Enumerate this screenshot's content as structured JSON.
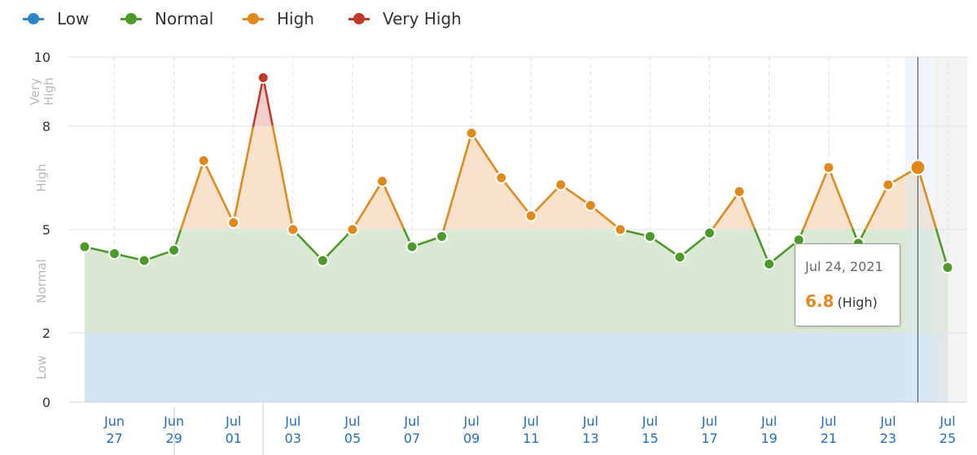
{
  "legend": [
    {
      "label": "Low",
      "color": "#2e86c8"
    },
    {
      "label": "Normal",
      "color": "#4c9a2a"
    },
    {
      "label": "High",
      "color": "#e08a1e"
    },
    {
      "label": "Very High",
      "color": "#c0392b"
    }
  ],
  "tooltip": {
    "date": "Jul 24, 2021",
    "value": "6.8",
    "level": "(High)"
  },
  "chart_data": {
    "type": "line",
    "ylim": [
      0,
      10
    ],
    "y_ticks": [
      "0",
      "2",
      "5",
      "8",
      "10"
    ],
    "bands": [
      {
        "label": "Low",
        "from": 0,
        "to": 2,
        "color": "#2e86c8"
      },
      {
        "label": "Normal",
        "from": 2,
        "to": 5,
        "color": "#4c9a2a"
      },
      {
        "label": "High",
        "from": 5,
        "to": 8,
        "color": "#e08a1e"
      },
      {
        "label": "Very High",
        "from": 8,
        "to": 10,
        "color": "#c0392b"
      }
    ],
    "x_ticks": [
      {
        "month": "Jun",
        "day": "27"
      },
      {
        "month": "Jun",
        "day": "29"
      },
      {
        "month": "Jul",
        "day": "01"
      },
      {
        "month": "Jul",
        "day": "03"
      },
      {
        "month": "Jul",
        "day": "05"
      },
      {
        "month": "Jul",
        "day": "07"
      },
      {
        "month": "Jul",
        "day": "09"
      },
      {
        "month": "Jul",
        "day": "11"
      },
      {
        "month": "Jul",
        "day": "13"
      },
      {
        "month": "Jul",
        "day": "15"
      },
      {
        "month": "Jul",
        "day": "17"
      },
      {
        "month": "Jul",
        "day": "19"
      },
      {
        "month": "Jul",
        "day": "21"
      },
      {
        "month": "Jul",
        "day": "23"
      },
      {
        "month": "Jul",
        "day": "25"
      }
    ],
    "series": [
      {
        "x": [
          "Jun 26",
          "Jun 27",
          "Jun 28",
          "Jun 29",
          "Jun 30",
          "Jul 01",
          "Jul 02",
          "Jul 03",
          "Jul 04",
          "Jul 05",
          "Jul 06",
          "Jul 07",
          "Jul 08",
          "Jul 09",
          "Jul 10",
          "Jul 11",
          "Jul 12",
          "Jul 13",
          "Jul 14",
          "Jul 15",
          "Jul 16",
          "Jul 17",
          "Jul 18",
          "Jul 19",
          "Jul 20",
          "Jul 21",
          "Jul 22",
          "Jul 23",
          "Jul 24",
          "Jul 25"
        ],
        "values": [
          4.5,
          4.3,
          4.1,
          4.4,
          7.0,
          5.2,
          9.4,
          5.0,
          4.1,
          5.0,
          6.4,
          4.5,
          4.8,
          7.8,
          6.5,
          5.4,
          6.3,
          5.7,
          5.0,
          4.8,
          4.2,
          4.9,
          6.1,
          4.0,
          4.7,
          6.8,
          4.6,
          6.3,
          6.8,
          3.9
        ]
      }
    ],
    "highlight": "Jul 24"
  }
}
